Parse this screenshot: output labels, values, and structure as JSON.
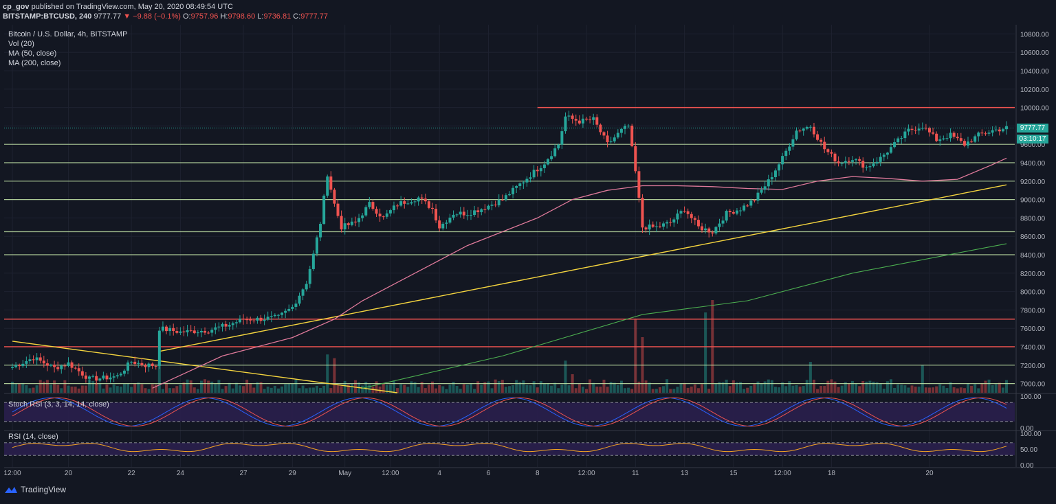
{
  "header": {
    "author": "cp_gov",
    "published_text": "published on TradingView.com, May 20, 2020 08:49:54 UTC",
    "symbol": "BITSTAMP:BTCUSD, 240",
    "last": "9777.77",
    "change": "▼ −9.88 (−0.1%)",
    "o_label": "O:",
    "o_val": "9757.96",
    "h_label": "H:",
    "h_val": "9798.60",
    "l_label": "L:",
    "l_val": "9736.81",
    "c_label": "C:",
    "c_val": "9777.77"
  },
  "legend": {
    "title": "Bitcoin / U.S. Dollar, 4h, BITSTAMP",
    "vol": "Vol (20)",
    "ma50": "MA (50, close)",
    "ma200": "MA (200, close)"
  },
  "price_tags": {
    "price": "9777.77",
    "countdown": "03:10:17"
  },
  "footer": {
    "brand": "TradingView"
  },
  "colors": {
    "background": "#131722",
    "up": "#26a69a",
    "down": "#ef5350",
    "ma50": "#e07a9b",
    "ma200": "#4caf50",
    "trendline": "#f5d53f",
    "resistance": "#ef5350",
    "support": "#c5e8a8",
    "rsi_line": "#f5a623",
    "stoch_k": "#2962ff",
    "stoch_d": "#ef5350",
    "osc_band": "#2a1f4d"
  },
  "chart_data": [
    {
      "type": "candlestick",
      "title": "Bitcoin / U.S. Dollar, 4h, BITSTAMP",
      "ylim": [
        6900,
        10900
      ],
      "y_ticks": [
        "10800.00",
        "10600.00",
        "10400.00",
        "10200.00",
        "10000.00",
        "9800.00",
        "9600.00",
        "9400.00",
        "9200.00",
        "9000.00",
        "8800.00",
        "8600.00",
        "8400.00",
        "8200.00",
        "8000.00",
        "7800.00",
        "7600.00",
        "7400.00",
        "7200.00",
        "7000.00"
      ],
      "x_ticks": [
        "12:00",
        "20",
        "22",
        "24",
        "27",
        "29",
        "May",
        "12:00",
        "4",
        "6",
        "8",
        "12:00",
        "11",
        "13",
        "15",
        "12:00",
        "18",
        "20"
      ],
      "price_anchors": [
        [
          0,
          7180
        ],
        [
          6,
          7280
        ],
        [
          12,
          7170
        ],
        [
          16,
          7220
        ],
        [
          22,
          7050
        ],
        [
          26,
          7060
        ],
        [
          30,
          7080
        ],
        [
          34,
          7240
        ],
        [
          38,
          7200
        ],
        [
          41,
          7200
        ],
        [
          42,
          7600
        ],
        [
          48,
          7560
        ],
        [
          56,
          7580
        ],
        [
          62,
          7640
        ],
        [
          66,
          7700
        ],
        [
          70,
          7700
        ],
        [
          76,
          7720
        ],
        [
          80,
          7830
        ],
        [
          84,
          8100
        ],
        [
          86,
          8400
        ],
        [
          88,
          8750
        ],
        [
          90,
          9280
        ],
        [
          92,
          8950
        ],
        [
          94,
          8700
        ],
        [
          98,
          8750
        ],
        [
          102,
          8950
        ],
        [
          106,
          8800
        ],
        [
          110,
          8950
        ],
        [
          116,
          9020
        ],
        [
          120,
          8900
        ],
        [
          122,
          8700
        ],
        [
          126,
          8850
        ],
        [
          130,
          8850
        ],
        [
          134,
          8900
        ],
        [
          140,
          9000
        ],
        [
          146,
          9200
        ],
        [
          152,
          9400
        ],
        [
          156,
          9600
        ],
        [
          158,
          9900
        ],
        [
          162,
          9850
        ],
        [
          166,
          9870
        ],
        [
          170,
          9600
        ],
        [
          174,
          9750
        ],
        [
          176,
          9800
        ],
        [
          178,
          9300
        ],
        [
          180,
          8700
        ],
        [
          184,
          8700
        ],
        [
          188,
          8750
        ],
        [
          192,
          8900
        ],
        [
          196,
          8700
        ],
        [
          200,
          8650
        ],
        [
          204,
          8850
        ],
        [
          208,
          8900
        ],
        [
          212,
          9000
        ],
        [
          216,
          9200
        ],
        [
          220,
          9450
        ],
        [
          224,
          9750
        ],
        [
          228,
          9800
        ],
        [
          232,
          9550
        ],
        [
          236,
          9400
        ],
        [
          240,
          9450
        ],
        [
          244,
          9350
        ],
        [
          248,
          9450
        ],
        [
          252,
          9600
        ],
        [
          256,
          9750
        ],
        [
          260,
          9800
        ],
        [
          264,
          9650
        ],
        [
          268,
          9700
        ],
        [
          272,
          9600
        ],
        [
          276,
          9700
        ],
        [
          280,
          9750
        ],
        [
          284,
          9778
        ]
      ],
      "volume_spikes": [
        [
          42,
          520
        ],
        [
          90,
          620
        ],
        [
          92,
          560
        ],
        [
          158,
          520
        ],
        [
          160,
          300
        ],
        [
          178,
          1200
        ],
        [
          180,
          900
        ],
        [
          198,
          1300
        ],
        [
          200,
          1500
        ],
        [
          228,
          500
        ],
        [
          260,
          450
        ]
      ],
      "resistance_levels": [
        7700,
        7400,
        10000
      ],
      "support_levels": [
        9600,
        9400,
        9200,
        9000,
        8650,
        8400,
        7200,
        7000
      ],
      "trendlines": [
        {
          "from": [
            42,
            7350
          ],
          "to": [
            284,
            9160
          ]
        },
        {
          "from": [
            0,
            7460
          ],
          "to": [
            110,
            6900
          ]
        }
      ],
      "ma50": [
        [
          40,
          6950
        ],
        [
          60,
          7300
        ],
        [
          80,
          7500
        ],
        [
          92,
          7700
        ],
        [
          100,
          7900
        ],
        [
          110,
          8100
        ],
        [
          120,
          8300
        ],
        [
          130,
          8500
        ],
        [
          140,
          8650
        ],
        [
          150,
          8800
        ],
        [
          160,
          9000
        ],
        [
          170,
          9100
        ],
        [
          180,
          9150
        ],
        [
          190,
          9150
        ],
        [
          200,
          9140
        ],
        [
          210,
          9120
        ],
        [
          220,
          9110
        ],
        [
          230,
          9200
        ],
        [
          240,
          9250
        ],
        [
          250,
          9230
        ],
        [
          260,
          9200
        ],
        [
          270,
          9220
        ],
        [
          280,
          9380
        ],
        [
          284,
          9450
        ]
      ],
      "ma200": [
        [
          100,
          6950
        ],
        [
          140,
          7300
        ],
        [
          180,
          7750
        ],
        [
          210,
          7900
        ],
        [
          240,
          8200
        ],
        [
          284,
          8520
        ]
      ],
      "last_price": 9777.77
    },
    {
      "type": "line",
      "title": "Stoch RSI (3, 3, 14, 14, close)",
      "ylim": [
        0,
        100
      ],
      "y_ticks": [
        "100.00",
        "0.00"
      ],
      "bands": [
        20,
        80
      ]
    },
    {
      "type": "line",
      "title": "RSI (14, close)",
      "ylim": [
        0,
        100
      ],
      "y_ticks": [
        "100.00",
        "50.00",
        "0.00"
      ],
      "bands": [
        30,
        70
      ]
    }
  ]
}
